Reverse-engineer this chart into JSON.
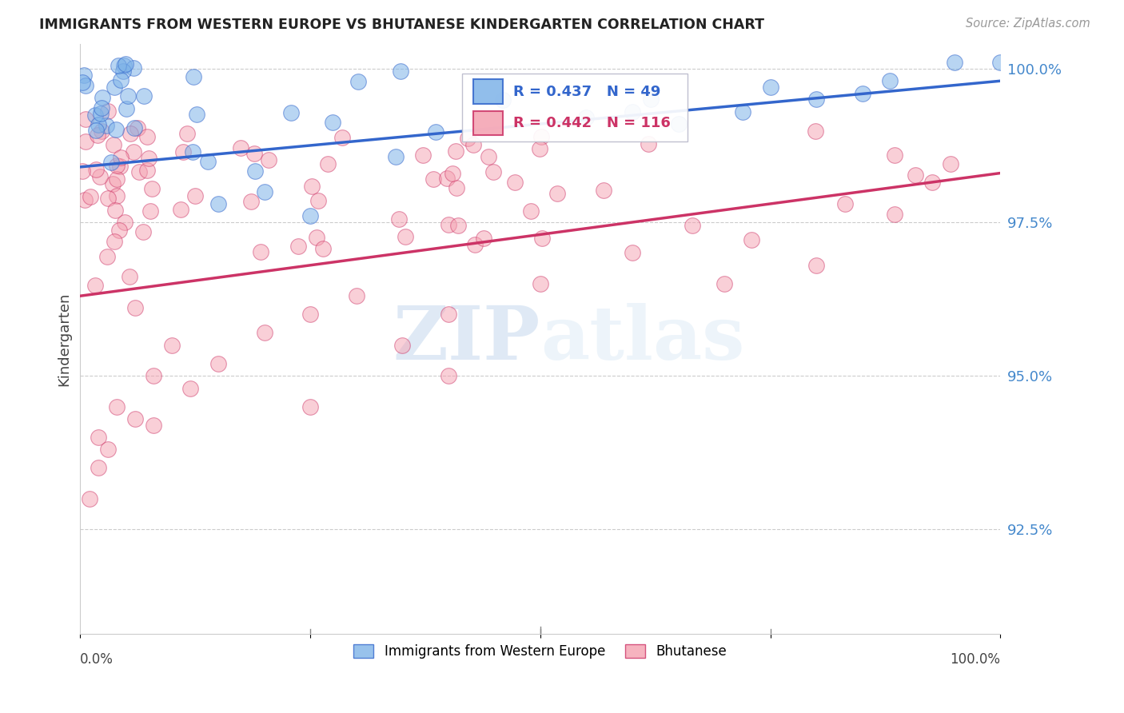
{
  "title": "IMMIGRANTS FROM WESTERN EUROPE VS BHUTANESE KINDERGARTEN CORRELATION CHART",
  "source": "Source: ZipAtlas.com",
  "ylabel": "Kindergarten",
  "xlim": [
    0.0,
    1.0
  ],
  "ylim": [
    0.908,
    1.004
  ],
  "y_ticks": [
    0.925,
    0.95,
    0.975,
    1.0
  ],
  "y_tick_labels": [
    "92.5%",
    "95.0%",
    "97.5%",
    "100.0%"
  ],
  "blue_R": 0.437,
  "blue_N": 49,
  "pink_R": 0.442,
  "pink_N": 116,
  "blue_color": "#7EB3E8",
  "pink_color": "#F4A0B0",
  "trendline_blue": "#3366CC",
  "trendline_pink": "#CC3366",
  "watermark_color": "#D8E8F5",
  "legend_label_blue": "Immigrants from Western Europe",
  "legend_label_pink": "Bhutanese",
  "blue_line_y0": 0.984,
  "blue_line_y1": 0.998,
  "pink_line_y0": 0.963,
  "pink_line_y1": 0.983
}
